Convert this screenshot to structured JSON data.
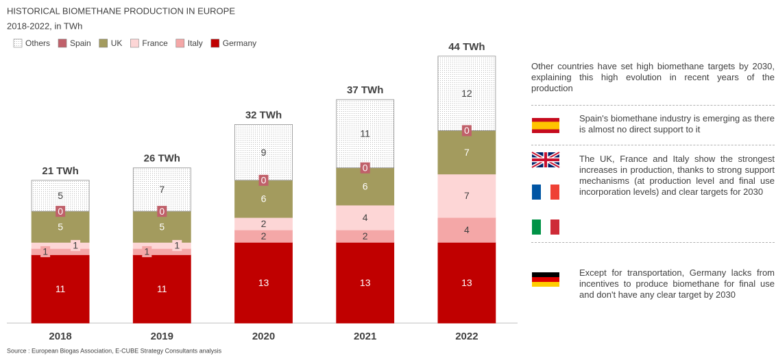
{
  "chart_data": {
    "type": "stacked_bar",
    "title": "HISTORICAL BIOMETHANE PRODUCTION IN EUROPE",
    "subtitle": "2018-2022, in TWh",
    "source": "Source : European Biogas Association, E-CUBE Strategy Consultants analysis",
    "categories": [
      "2018",
      "2019",
      "2020",
      "2021",
      "2022"
    ],
    "series": [
      {
        "name": "Germany",
        "color": "#c00000",
        "label_color": "#ffffff",
        "values": [
          11,
          11,
          13,
          13,
          13
        ]
      },
      {
        "name": "Italy",
        "color": "#f4a7a7",
        "label_color": "#404040",
        "values": [
          1,
          1,
          2,
          2,
          4
        ]
      },
      {
        "name": "France",
        "color": "#fdd6d6",
        "label_color": "#404040",
        "values": [
          1,
          1,
          2,
          4,
          7
        ]
      },
      {
        "name": "UK",
        "color": "#a39b5e",
        "label_color": "#ffffff",
        "values": [
          5,
          5,
          6,
          6,
          7
        ]
      },
      {
        "name": "Spain",
        "color": "#c0606a",
        "label_color": "#ffffff",
        "values": [
          0,
          0,
          0,
          0,
          0
        ]
      },
      {
        "name": "Others",
        "color": "#ffffff",
        "label_color": "#404040",
        "values": [
          5,
          7,
          9,
          11,
          12
        ]
      }
    ],
    "totals": [
      21,
      26,
      32,
      37,
      44
    ],
    "total_labels": [
      "21 TWh",
      "26 TWh",
      "32 TWh",
      "37 TWh",
      "44 TWh"
    ]
  },
  "notes": {
    "intro": "Other countries have set high biomethane targets by 2030, explaining this high evolution in recent years of the production",
    "spain": "Spain's biomethane industry is emerging as there is almost no direct support to it",
    "uk_france_italy": "The UK, France and Italy show the strongest increases in production, thanks to strong support mechanisms (at production level and final use incorporation levels) and clear targets for 2030",
    "germany": "Except for transportation, Germany lacks from incentives to produce biomethane for final use and don't have any clear target by 2030"
  }
}
